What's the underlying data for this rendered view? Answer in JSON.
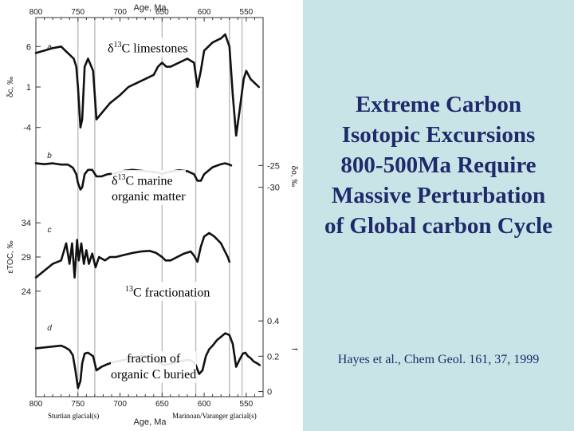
{
  "figure": {
    "labels": {
      "limestones": [
        "δ",
        "13",
        "C limestones"
      ],
      "marine": [
        "δ",
        "13",
        "C marine",
        "organic matter"
      ],
      "fractionation": [
        "13",
        "C fractionation"
      ],
      "buried": [
        "fraction of",
        "organic C buried"
      ]
    },
    "glacial_labels": {
      "sturtian": "Sturtian glacial(s)",
      "marinoan": "Marinoan/Varanger glacial(s)"
    }
  },
  "title_lines": [
    "Extreme Carbon",
    "Isotopic  Excursions",
    "800-500Ma Require",
    "Massive Perturbation",
    "of Global carbon Cycle"
  ],
  "citation": "Hayes et al., Chem Geol. 161, 37, 1999",
  "chart_data": {
    "type": "line",
    "x_axis": {
      "label": "Age, Ma",
      "range": [
        800,
        530
      ],
      "ticks": [
        800,
        750,
        700,
        650,
        600,
        550
      ]
    },
    "vertical_lines": [
      750,
      730,
      650,
      610,
      570,
      555
    ],
    "panels": [
      {
        "id": "a",
        "ylabel": "δc, ‰",
        "y_ticks": [
          6,
          1,
          -4
        ],
        "ylim": [
          -6,
          8
        ],
        "x": [
          800,
          790,
          780,
          770,
          765,
          760,
          755,
          752,
          750,
          747,
          745,
          742,
          738,
          732,
          728,
          720,
          712,
          700,
          690,
          680,
          670,
          660,
          655,
          650,
          645,
          640,
          630,
          620,
          612,
          608,
          604,
          600,
          590,
          580,
          575,
          570,
          566,
          562,
          558,
          553,
          550,
          545,
          540,
          535
        ],
        "y": [
          5.2,
          5.5,
          5.8,
          6.0,
          5.5,
          5.0,
          4.5,
          3.5,
          1,
          -4,
          -3,
          3.5,
          4.5,
          3,
          -3,
          -2,
          -1,
          0,
          1,
          1.5,
          2,
          2.5,
          3.5,
          4,
          3.5,
          3.5,
          4,
          4.5,
          4,
          1,
          3,
          5.5,
          6.5,
          7,
          7.5,
          6,
          0,
          -5,
          -2,
          2,
          3,
          2,
          1.5,
          1
        ]
      },
      {
        "id": "b",
        "ylabel": "δo, ‰",
        "y_ticks": [
          -25,
          -30
        ],
        "ylim": [
          -35,
          -20
        ],
        "x": [
          800,
          790,
          780,
          770,
          762,
          756,
          752,
          750,
          747,
          745,
          742,
          738,
          733,
          728,
          722,
          715,
          705,
          695,
          685,
          675,
          665,
          655,
          650,
          645,
          640,
          630,
          620,
          612,
          608,
          604,
          600,
          590,
          580,
          575,
          570,
          568
        ],
        "y": [
          -24.5,
          -24.7,
          -24.5,
          -24.8,
          -24.8,
          -25.5,
          -27,
          -29,
          -30.5,
          -30,
          -27,
          -26,
          -26,
          -27.5,
          -27.5,
          -27,
          -26.8,
          -26.2,
          -26,
          -26.2,
          -26.4,
          -26.6,
          -27,
          -26.6,
          -26.4,
          -26.1,
          -26.3,
          -27,
          -28.5,
          -28.5,
          -27,
          -25.4,
          -24.7,
          -24.5,
          -24.8,
          -25
        ]
      },
      {
        "id": "c",
        "ylabel": "εTOC, ‰",
        "y_ticks": [
          34,
          29,
          24
        ],
        "ylim": [
          22,
          36
        ],
        "x": [
          800,
          790,
          780,
          770,
          764,
          760,
          757,
          754,
          751,
          749,
          746,
          743,
          740,
          737,
          733,
          729,
          725,
          718,
          712,
          705,
          695,
          685,
          675,
          665,
          657,
          650,
          646,
          640,
          632,
          624,
          616,
          612,
          608,
          604,
          600,
          594,
          588,
          580,
          576,
          572,
          570
        ],
        "y": [
          26,
          27,
          28,
          28.5,
          31,
          28,
          31,
          26,
          31.5,
          28.5,
          31,
          28,
          30,
          28,
          29.5,
          27.5,
          29,
          28.5,
          29,
          29,
          29.3,
          29.6,
          29.8,
          29.9,
          29.6,
          29,
          28.5,
          28.5,
          29,
          29.5,
          29.8,
          29.2,
          28.3,
          30.5,
          32,
          32.5,
          32,
          31,
          30,
          29,
          28.3
        ]
      },
      {
        "id": "d",
        "ylabel": "f",
        "y_ticks": [
          0.4,
          0.2,
          0.0
        ],
        "ylim": [
          -0.02,
          0.5
        ],
        "x": [
          800,
          790,
          780,
          770,
          765,
          760,
          756,
          753,
          750,
          747,
          745,
          742,
          738,
          732,
          728,
          722,
          715,
          705,
          695,
          685,
          675,
          665,
          658,
          652,
          647,
          642,
          638,
          630,
          620,
          615,
          610,
          606,
          602,
          598,
          594,
          590,
          585,
          580,
          575,
          570,
          566,
          562,
          558,
          554,
          551,
          548,
          545,
          541,
          537,
          534
        ],
        "y": [
          0.245,
          0.25,
          0.255,
          0.26,
          0.25,
          0.235,
          0.205,
          0.12,
          0.02,
          0.06,
          0.16,
          0.215,
          0.22,
          0.2,
          0.12,
          0.14,
          0.155,
          0.17,
          0.18,
          0.19,
          0.2,
          0.2,
          0.18,
          0.16,
          0.15,
          0.155,
          0.16,
          0.17,
          0.18,
          0.175,
          0.15,
          0.1,
          0.12,
          0.2,
          0.24,
          0.26,
          0.29,
          0.31,
          0.33,
          0.32,
          0.27,
          0.14,
          0.18,
          0.215,
          0.22,
          0.2,
          0.19,
          0.17,
          0.16,
          0.15
        ]
      }
    ]
  }
}
